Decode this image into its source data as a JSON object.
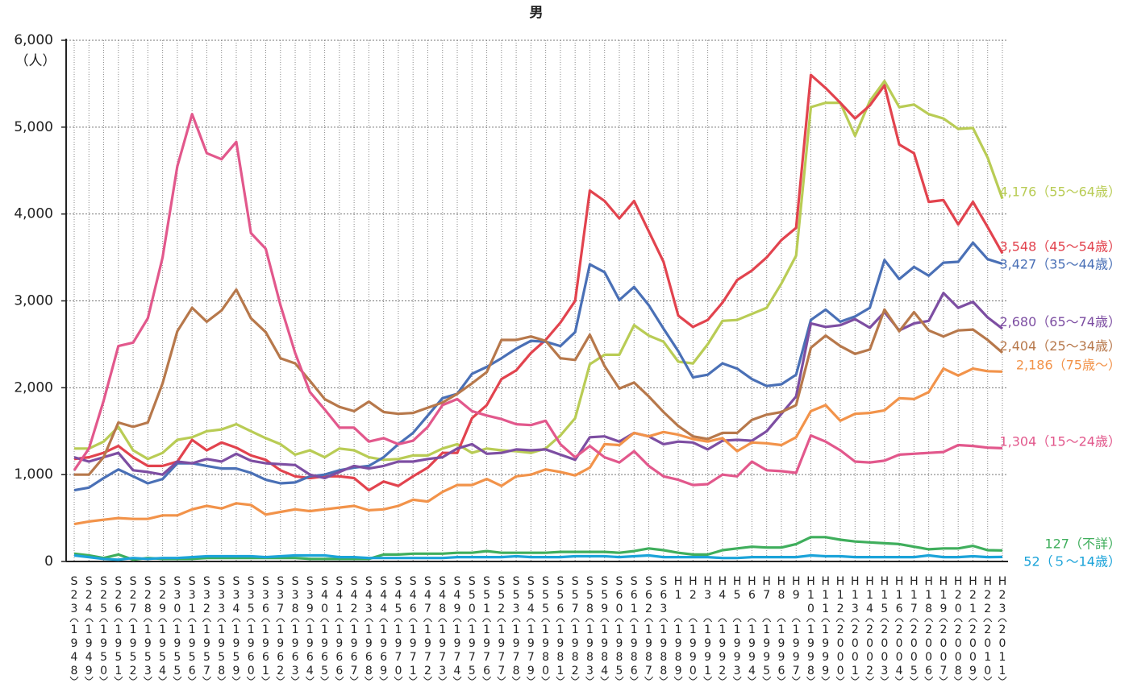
{
  "chart_data": {
    "type": "line",
    "title": "男",
    "y_unit": "（人）",
    "categories": [
      "S23",
      "S24",
      "S25",
      "S26",
      "S27",
      "S28",
      "S29",
      "S30",
      "S31",
      "S32",
      "S33",
      "S34",
      "S35",
      "S36",
      "S37",
      "S38",
      "S39",
      "S40",
      "S41",
      "S42",
      "S43",
      "S44",
      "S45",
      "S46",
      "S47",
      "S48",
      "S49",
      "S50",
      "S51",
      "S52",
      "S53",
      "S54",
      "S55",
      "S56",
      "S57",
      "S58",
      "S59",
      "S60",
      "S61",
      "S62",
      "S63",
      "H1",
      "H2",
      "H3",
      "H4",
      "H5",
      "H6",
      "H7",
      "H8",
      "H9",
      "H10",
      "H11",
      "H12",
      "H13",
      "H14",
      "H15",
      "H16",
      "H17",
      "H18",
      "H19",
      "H20",
      "H21",
      "H22",
      "H23"
    ],
    "years": [
      "1948",
      "1949",
      "1950",
      "1951",
      "1952",
      "1953",
      "1954",
      "1955",
      "1956",
      "1957",
      "1958",
      "1959",
      "1960",
      "1961",
      "1962",
      "1963",
      "1964",
      "1965",
      "1966",
      "1967",
      "1968",
      "1969",
      "1970",
      "1971",
      "1972",
      "1973",
      "1974",
      "1975",
      "1976",
      "1977",
      "1978",
      "1979",
      "1980",
      "1981",
      "1982",
      "1983",
      "1984",
      "1985",
      "1986",
      "1987",
      "1988",
      "1989",
      "1990",
      "1991",
      "1992",
      "1993",
      "1994",
      "1995",
      "1996",
      "1997",
      "1998",
      "1999",
      "2000",
      "2001",
      "2002",
      "2003",
      "2004",
      "2005",
      "2006",
      "2007",
      "2008",
      "2009",
      "2010",
      "2011"
    ],
    "ylim": [
      0,
      6000
    ],
    "yticks": [
      0,
      {
        "value": 1000,
        "label": "1,000"
      },
      {
        "value": 2000,
        "label": "2,000"
      },
      {
        "value": 3000,
        "label": "3,000"
      },
      {
        "value": 4000,
        "label": "4,000"
      },
      {
        "value": 5000,
        "label": "5,000"
      },
      {
        "value": 6000,
        "label": "6,000"
      }
    ],
    "grid": true,
    "series": [
      {
        "name": "（55～64歳）",
        "color": "#b9cc55",
        "end_label": "4,176",
        "values": [
          1300,
          1300,
          1380,
          1550,
          1280,
          1180,
          1250,
          1400,
          1430,
          1500,
          1520,
          1580,
          1500,
          1420,
          1350,
          1230,
          1280,
          1200,
          1300,
          1280,
          1200,
          1170,
          1180,
          1220,
          1220,
          1300,
          1350,
          1250,
          1300,
          1280,
          1270,
          1250,
          1300,
          1450,
          1650,
          2270,
          2380,
          2380,
          2720,
          2600,
          2530,
          2300,
          2280,
          2500,
          2770,
          2780,
          2850,
          2920,
          3200,
          3520,
          5230,
          5280,
          5280,
          4900,
          5300,
          5530,
          5230,
          5260,
          5150,
          5100,
          4980,
          4990,
          4650,
          4176
        ]
      },
      {
        "name": "（45～54歳）",
        "color": "#e2434e",
        "end_label": "3,548",
        "values": [
          1180,
          1200,
          1250,
          1330,
          1200,
          1100,
          1100,
          1150,
          1400,
          1280,
          1370,
          1310,
          1220,
          1170,
          1050,
          980,
          960,
          980,
          980,
          960,
          820,
          920,
          870,
          980,
          1080,
          1250,
          1250,
          1650,
          1800,
          2100,
          2200,
          2400,
          2550,
          2750,
          3000,
          4270,
          4150,
          3950,
          4150,
          3800,
          3450,
          2830,
          2700,
          2780,
          2980,
          3240,
          3350,
          3500,
          3700,
          3840,
          5600,
          5450,
          5280,
          5100,
          5250,
          5480,
          4800,
          4700,
          4140,
          4160,
          3880,
          4140,
          3850,
          3548
        ]
      },
      {
        "name": "（35～44歳）",
        "color": "#4a70b6",
        "end_label": "3,427",
        "values": [
          820,
          850,
          960,
          1060,
          980,
          900,
          950,
          1130,
          1130,
          1100,
          1070,
          1070,
          1020,
          940,
          900,
          910,
          980,
          1000,
          1050,
          1080,
          1100,
          1200,
          1350,
          1480,
          1680,
          1880,
          1930,
          2160,
          2240,
          2340,
          2450,
          2540,
          2530,
          2480,
          2640,
          3420,
          3330,
          3010,
          3160,
          2950,
          2680,
          2420,
          2120,
          2150,
          2280,
          2220,
          2100,
          2020,
          2040,
          2150,
          2780,
          2900,
          2760,
          2820,
          2920,
          3470,
          3250,
          3390,
          3290,
          3440,
          3450,
          3670,
          3480,
          3427
        ]
      },
      {
        "name": "（65～74歳）",
        "color": "#7d4ea2",
        "end_label": "2,680",
        "values": [
          1200,
          1150,
          1200,
          1250,
          1050,
          1030,
          1000,
          1150,
          1130,
          1180,
          1150,
          1240,
          1160,
          1130,
          1120,
          1110,
          1000,
          960,
          1030,
          1100,
          1070,
          1100,
          1150,
          1150,
          1180,
          1200,
          1300,
          1350,
          1240,
          1250,
          1290,
          1280,
          1290,
          1230,
          1170,
          1430,
          1440,
          1380,
          1480,
          1440,
          1350,
          1380,
          1370,
          1290,
          1390,
          1400,
          1390,
          1500,
          1700,
          1900,
          2740,
          2700,
          2720,
          2790,
          2690,
          2870,
          2660,
          2740,
          2770,
          3090,
          2920,
          2990,
          2810,
          2680
        ]
      },
      {
        "name": "（25～34歳）",
        "color": "#b7784b",
        "end_label": "2,404",
        "values": [
          1000,
          1000,
          1200,
          1600,
          1550,
          1600,
          2050,
          2650,
          2920,
          2760,
          2890,
          3130,
          2800,
          2640,
          2340,
          2280,
          2080,
          1870,
          1780,
          1730,
          1840,
          1720,
          1700,
          1710,
          1770,
          1830,
          1930,
          2050,
          2180,
          2550,
          2550,
          2590,
          2540,
          2340,
          2320,
          2610,
          2250,
          1990,
          2060,
          1900,
          1720,
          1560,
          1440,
          1410,
          1480,
          1480,
          1630,
          1690,
          1720,
          1800,
          2460,
          2600,
          2480,
          2390,
          2440,
          2900,
          2650,
          2870,
          2660,
          2590,
          2660,
          2670,
          2550,
          2404
        ]
      },
      {
        "name": "（75歳～）",
        "color": "#f2934a",
        "end_label": "2,186",
        "values": [
          430,
          460,
          480,
          500,
          490,
          490,
          530,
          530,
          600,
          640,
          610,
          670,
          650,
          540,
          570,
          600,
          580,
          600,
          620,
          640,
          590,
          600,
          640,
          710,
          690,
          800,
          880,
          880,
          950,
          870,
          980,
          1000,
          1060,
          1030,
          990,
          1080,
          1350,
          1340,
          1480,
          1440,
          1490,
          1460,
          1410,
          1380,
          1420,
          1270,
          1370,
          1360,
          1340,
          1430,
          1730,
          1800,
          1620,
          1700,
          1710,
          1740,
          1880,
          1870,
          1950,
          2220,
          2140,
          2220,
          2190,
          2186
        ]
      },
      {
        "name": "（15～24歳）",
        "color": "#e2588c",
        "end_label": "1,304",
        "values": [
          1050,
          1300,
          1850,
          2480,
          2520,
          2800,
          3500,
          4550,
          5150,
          4700,
          4630,
          4830,
          3780,
          3600,
          2950,
          2400,
          1950,
          1750,
          1540,
          1540,
          1380,
          1420,
          1350,
          1390,
          1550,
          1800,
          1870,
          1730,
          1680,
          1640,
          1580,
          1570,
          1620,
          1350,
          1200,
          1330,
          1200,
          1140,
          1270,
          1100,
          980,
          940,
          880,
          890,
          1000,
          980,
          1150,
          1050,
          1040,
          1020,
          1450,
          1380,
          1280,
          1150,
          1140,
          1160,
          1230,
          1240,
          1250,
          1260,
          1340,
          1330,
          1310,
          1304
        ]
      },
      {
        "name": "（不詳）",
        "color": "#3fae5c",
        "values": [
          90,
          70,
          40,
          80,
          20,
          40,
          30,
          30,
          30,
          40,
          40,
          40,
          40,
          40,
          40,
          40,
          30,
          30,
          30,
          30,
          30,
          80,
          80,
          90,
          90,
          90,
          100,
          100,
          120,
          100,
          100,
          100,
          100,
          110,
          110,
          110,
          110,
          100,
          120,
          150,
          130,
          100,
          80,
          80,
          130,
          150,
          170,
          160,
          160,
          200,
          280,
          280,
          250,
          230,
          220,
          210,
          200,
          170,
          140,
          150,
          150,
          180,
          130,
          127
        ]
      },
      {
        "name": "（５～14歳）",
        "color": "#1ba3d9",
        "values": [
          70,
          50,
          30,
          20,
          40,
          30,
          40,
          40,
          50,
          60,
          60,
          60,
          60,
          50,
          60,
          70,
          70,
          70,
          50,
          50,
          40,
          40,
          40,
          40,
          40,
          40,
          50,
          50,
          50,
          50,
          60,
          50,
          50,
          50,
          60,
          60,
          60,
          50,
          60,
          70,
          50,
          50,
          50,
          50,
          40,
          40,
          50,
          50,
          50,
          50,
          70,
          60,
          60,
          50,
          50,
          50,
          50,
          50,
          70,
          50,
          50,
          60,
          50,
          52
        ]
      }
    ]
  }
}
